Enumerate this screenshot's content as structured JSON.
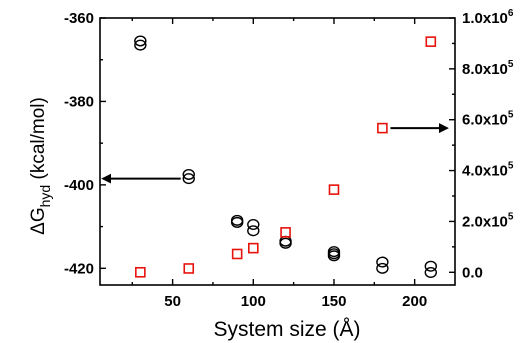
{
  "chart_data": {
    "type": "scatter",
    "title": "",
    "xlabel": "System size (Å)",
    "ylabel_left": {
      "prefix": "ΔG",
      "subscript": "hyd",
      "unit": " (kcal/mol)"
    },
    "ylabel_right": "",
    "xlim": [
      5,
      225
    ],
    "ylim_left": [
      -424,
      -360
    ],
    "ylim_right": [
      -50000,
      1000000
    ],
    "x_ticks": [
      50,
      100,
      150,
      200
    ],
    "y_ticks_left": [
      -360,
      -380,
      -400,
      -420
    ],
    "y_ticks_right": [
      {
        "value": 0,
        "label": "0.0"
      },
      {
        "value": 200000,
        "label": "2.0x10",
        "exp": "5"
      },
      {
        "value": 400000,
        "label": "4.0x10",
        "exp": "5"
      },
      {
        "value": 600000,
        "label": "6.0x10",
        "exp": "5"
      },
      {
        "value": 800000,
        "label": "8.0x10",
        "exp": "5"
      },
      {
        "value": 1000000,
        "label": "1.0x10",
        "exp": "6"
      }
    ],
    "grid": false,
    "legend": "none",
    "series": [
      {
        "axis": "left",
        "marker": "circle",
        "color": "#000000",
        "points": [
          {
            "x": 30,
            "y": -365.5
          },
          {
            "x": 30,
            "y": -366.5
          },
          {
            "x": 60,
            "y": -397.5
          },
          {
            "x": 60,
            "y": -398.5
          },
          {
            "x": 90,
            "y": -408.5
          },
          {
            "x": 90,
            "y": -409.0
          },
          {
            "x": 100,
            "y": -409.5
          },
          {
            "x": 100,
            "y": -411.0
          },
          {
            "x": 120,
            "y": -413.5
          },
          {
            "x": 120,
            "y": -414.0
          },
          {
            "x": 150,
            "y": -416.0
          },
          {
            "x": 150,
            "y": -416.5
          },
          {
            "x": 150,
            "y": -417.0
          },
          {
            "x": 180,
            "y": -418.5
          },
          {
            "x": 180,
            "y": -420.0
          },
          {
            "x": 210,
            "y": -419.5
          },
          {
            "x": 210,
            "y": -421.0
          }
        ]
      },
      {
        "axis": "right",
        "marker": "square",
        "color": "#e8120c",
        "points": [
          {
            "x": 30,
            "y": 0
          },
          {
            "x": 60,
            "y": 15000
          },
          {
            "x": 90,
            "y": 72000
          },
          {
            "x": 100,
            "y": 95000
          },
          {
            "x": 120,
            "y": 157000
          },
          {
            "x": 150,
            "y": 325000
          },
          {
            "x": 180,
            "y": 567000
          },
          {
            "x": 210,
            "y": 907000
          }
        ]
      }
    ],
    "annotations": [
      {
        "type": "arrow",
        "direction": "left",
        "series": 0,
        "from": {
          "x": 55,
          "y": -398.5
        },
        "to": {
          "x": 7,
          "y": -398.5
        }
      },
      {
        "type": "arrow",
        "direction": "right",
        "series": 1,
        "from": {
          "x": 185,
          "y": 567000
        },
        "to": {
          "x": 220,
          "y": 567000
        }
      }
    ]
  }
}
